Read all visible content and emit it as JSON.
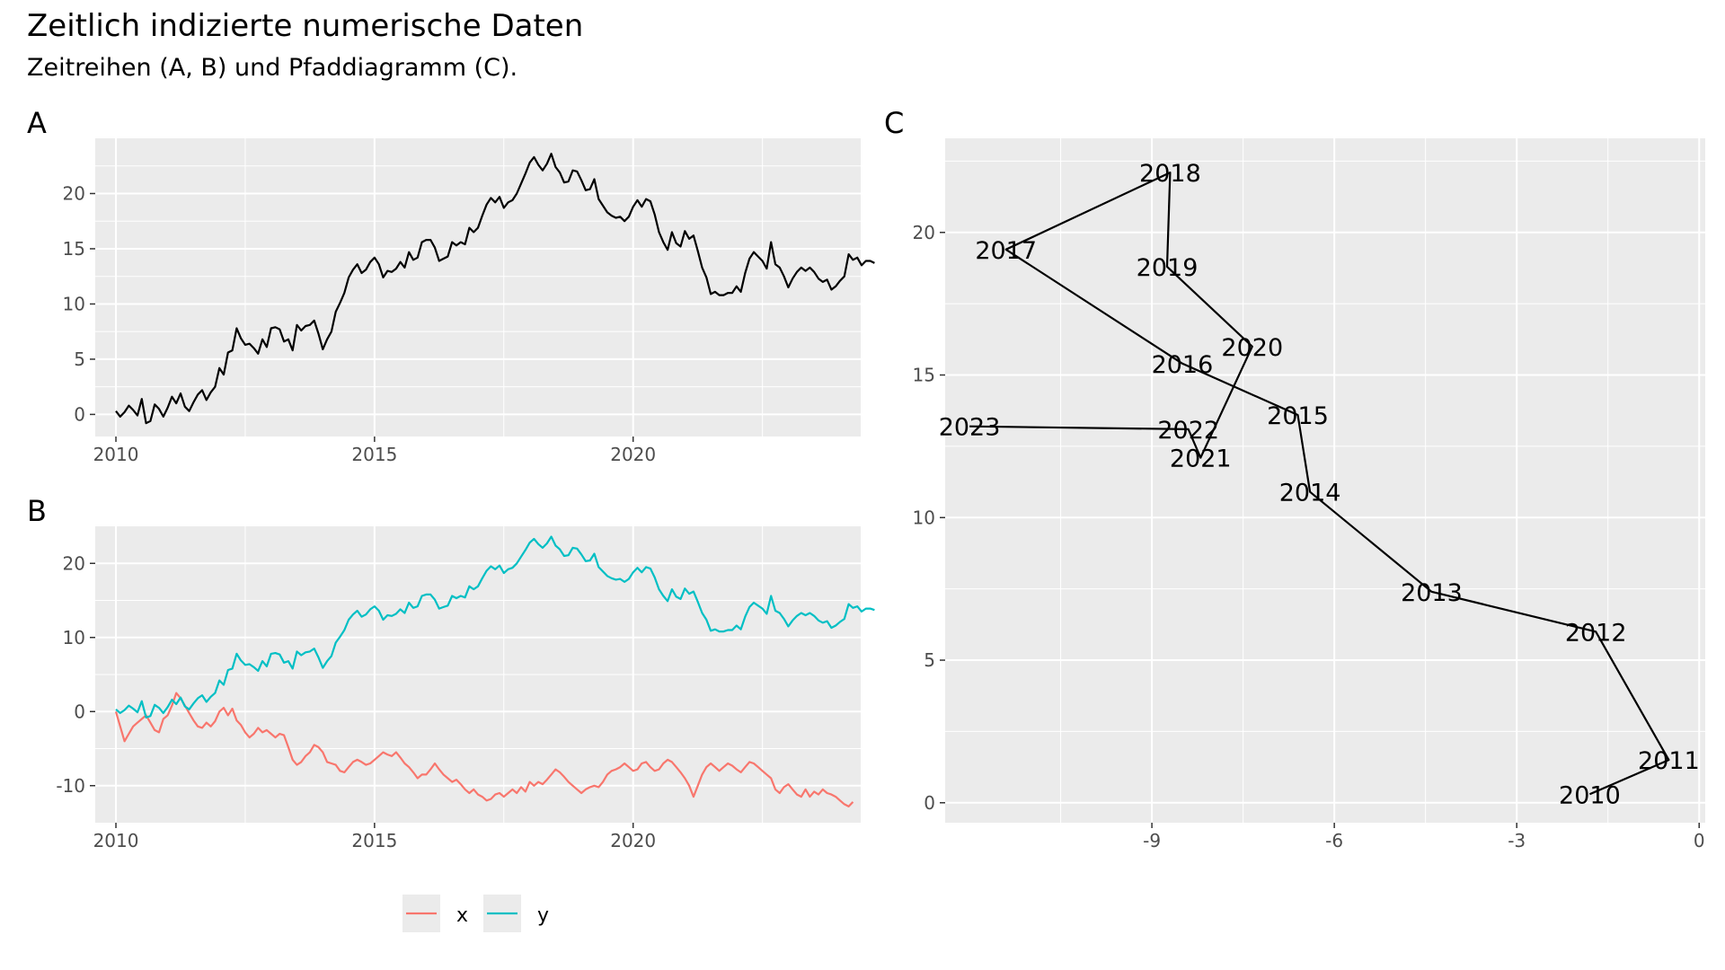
{
  "title": "Zeitlich indizierte numerische Daten",
  "subtitle": "Zeitreihen (A, B) und Pfaddiagramm (C).",
  "colors": {
    "x": "#F8766D",
    "y": "#00BFC4",
    "line": "#000000",
    "panel": "#EBEBEB",
    "grid": "#FFFFFF"
  },
  "legend": {
    "placement": "bottom",
    "items": [
      {
        "key": "x",
        "label": "x"
      },
      {
        "key": "y",
        "label": "y"
      }
    ]
  },
  "chart_data": [
    {
      "tag": "A",
      "type": "line",
      "xlim": [
        2009.6,
        2024.4
      ],
      "ylim": [
        -2,
        25
      ],
      "x_ticks": [
        2010,
        2015,
        2020
      ],
      "y_ticks": [
        0,
        5,
        10,
        15,
        20
      ],
      "grid": true,
      "series": [
        {
          "key": "y",
          "x_start": 2010.0,
          "x_step": 0.0833333,
          "values": [
            0.3,
            -0.2,
            0.2,
            0.8,
            0.4,
            -0.1,
            1.4,
            -0.8,
            -0.6,
            0.9,
            0.5,
            -0.2,
            0.6,
            1.6,
            1.0,
            1.9,
            0.7,
            0.3,
            1.1,
            1.8,
            2.2,
            1.3,
            2.0,
            2.5,
            4.2,
            3.6,
            5.6,
            5.8,
            7.8,
            6.9,
            6.3,
            6.4,
            6.0,
            5.5,
            6.8,
            6.1,
            7.8,
            7.9,
            7.7,
            6.6,
            6.8,
            5.8,
            8.1,
            7.6,
            8.0,
            8.1,
            8.5,
            7.3,
            5.9,
            6.8,
            7.5,
            9.3,
            10.1,
            11.0,
            12.4,
            13.1,
            13.6,
            12.8,
            13.1,
            13.8,
            14.2,
            13.6,
            12.4,
            13.0,
            12.9,
            13.2,
            13.8,
            13.3,
            14.7,
            14.0,
            14.2,
            15.6,
            15.8,
            15.8,
            15.1,
            13.9,
            14.1,
            14.3,
            15.6,
            15.3,
            15.6,
            15.4,
            16.9,
            16.5,
            16.9,
            18.0,
            19.0,
            19.6,
            19.2,
            19.7,
            18.7,
            19.2,
            19.4,
            20.0,
            20.9,
            21.8,
            22.8,
            23.3,
            22.6,
            22.1,
            22.7,
            23.6,
            22.4,
            21.9,
            21.0,
            21.1,
            22.1,
            22.0,
            21.2,
            20.3,
            20.4,
            21.3,
            19.5,
            18.9,
            18.3,
            18.0,
            17.8,
            17.9,
            17.5,
            17.9,
            18.8,
            19.4,
            18.8,
            19.5,
            19.3,
            18.1,
            16.5,
            15.6,
            14.9,
            16.5,
            15.5,
            15.2,
            16.6,
            15.9,
            16.2,
            14.8,
            13.3,
            12.4,
            10.9,
            11.1,
            10.8,
            10.8,
            11.0,
            11.0,
            11.6,
            11.1,
            12.8,
            14.1,
            14.7,
            14.3,
            13.9,
            13.2,
            15.6,
            13.6,
            13.3,
            12.5,
            11.5,
            12.3,
            12.9,
            13.3,
            13.0,
            13.3,
            12.9,
            12.3,
            12.0,
            12.2,
            11.3,
            11.6,
            12.1,
            12.5,
            14.5,
            14.0,
            14.2,
            13.5,
            13.9,
            13.9,
            13.7
          ]
        }
      ]
    },
    {
      "tag": "B",
      "type": "line",
      "xlim": [
        2009.6,
        2024.4
      ],
      "ylim": [
        -15,
        25
      ],
      "x_ticks": [
        2010,
        2015,
        2020
      ],
      "y_ticks": [
        -10,
        0,
        10,
        20
      ],
      "grid": true,
      "series": [
        {
          "key": "x",
          "name": "x",
          "x_start": 2010.0,
          "x_step": 0.0833333,
          "values": [
            0.0,
            -2.0,
            -4.0,
            -3.0,
            -2.0,
            -1.5,
            -1.0,
            -0.5,
            -1.5,
            -2.5,
            -2.8,
            -1.0,
            -0.5,
            0.8,
            2.5,
            1.8,
            0.8,
            -0.2,
            -1.2,
            -2.0,
            -2.2,
            -1.5,
            -2.0,
            -1.3,
            0.0,
            0.5,
            -0.5,
            0.4,
            -1.2,
            -1.8,
            -2.8,
            -3.5,
            -3.0,
            -2.2,
            -2.8,
            -2.5,
            -3.0,
            -3.5,
            -3.0,
            -3.2,
            -4.8,
            -6.5,
            -7.2,
            -6.8,
            -6.0,
            -5.5,
            -4.5,
            -4.8,
            -5.5,
            -6.8,
            -7.0,
            -7.2,
            -8.0,
            -8.2,
            -7.5,
            -6.8,
            -6.5,
            -6.8,
            -7.2,
            -7.0,
            -6.5,
            -6.0,
            -5.5,
            -5.8,
            -6.0,
            -5.5,
            -6.2,
            -7.0,
            -7.5,
            -8.2,
            -9.0,
            -8.5,
            -8.5,
            -7.8,
            -7.0,
            -7.8,
            -8.5,
            -9.0,
            -9.5,
            -9.2,
            -9.8,
            -10.5,
            -11.0,
            -10.5,
            -11.2,
            -11.5,
            -12.0,
            -11.8,
            -11.2,
            -11.0,
            -11.5,
            -11.0,
            -10.5,
            -11.0,
            -10.2,
            -10.8,
            -9.5,
            -10.0,
            -9.5,
            -9.8,
            -9.2,
            -8.5,
            -7.8,
            -8.2,
            -8.8,
            -9.5,
            -10.0,
            -10.5,
            -11.0,
            -10.5,
            -10.2,
            -10.0,
            -10.2,
            -9.5,
            -8.5,
            -8.0,
            -7.8,
            -7.5,
            -7.0,
            -7.5,
            -8.0,
            -7.8,
            -7.0,
            -6.8,
            -7.5,
            -8.0,
            -7.8,
            -7.0,
            -6.5,
            -6.8,
            -7.5,
            -8.2,
            -9.0,
            -10.0,
            -11.5,
            -10.0,
            -8.5,
            -7.5,
            -7.0,
            -7.5,
            -8.0,
            -7.5,
            -7.0,
            -7.3,
            -7.8,
            -8.2,
            -7.5,
            -6.8,
            -7.0,
            -7.5,
            -8.0,
            -8.5,
            -9.0,
            -10.5,
            -11.0,
            -10.2,
            -9.8,
            -10.5,
            -11.2,
            -11.5,
            -10.5,
            -11.5,
            -10.8,
            -11.2,
            -10.5,
            -11.0,
            -11.2,
            -11.5,
            -12.0,
            -12.5,
            -12.8,
            -12.2
          ]
        },
        {
          "key": "y",
          "name": "y",
          "x_start": 2010.0,
          "x_step": 0.0833333,
          "values": [
            0.3,
            -0.2,
            0.2,
            0.8,
            0.4,
            -0.1,
            1.4,
            -0.8,
            -0.6,
            0.9,
            0.5,
            -0.2,
            0.6,
            1.6,
            1.0,
            1.9,
            0.7,
            0.3,
            1.1,
            1.8,
            2.2,
            1.3,
            2.0,
            2.5,
            4.2,
            3.6,
            5.6,
            5.8,
            7.8,
            6.9,
            6.3,
            6.4,
            6.0,
            5.5,
            6.8,
            6.1,
            7.8,
            7.9,
            7.7,
            6.6,
            6.8,
            5.8,
            8.1,
            7.6,
            8.0,
            8.1,
            8.5,
            7.3,
            5.9,
            6.8,
            7.5,
            9.3,
            10.1,
            11.0,
            12.4,
            13.1,
            13.6,
            12.8,
            13.1,
            13.8,
            14.2,
            13.6,
            12.4,
            13.0,
            12.9,
            13.2,
            13.8,
            13.3,
            14.7,
            14.0,
            14.2,
            15.6,
            15.8,
            15.8,
            15.1,
            13.9,
            14.1,
            14.3,
            15.6,
            15.3,
            15.6,
            15.4,
            16.9,
            16.5,
            16.9,
            18.0,
            19.0,
            19.6,
            19.2,
            19.7,
            18.7,
            19.2,
            19.4,
            20.0,
            20.9,
            21.8,
            22.8,
            23.3,
            22.6,
            22.1,
            22.7,
            23.6,
            22.4,
            21.9,
            21.0,
            21.1,
            22.1,
            22.0,
            21.2,
            20.3,
            20.4,
            21.3,
            19.5,
            18.9,
            18.3,
            18.0,
            17.8,
            17.9,
            17.5,
            17.9,
            18.8,
            19.4,
            18.8,
            19.5,
            19.3,
            18.1,
            16.5,
            15.6,
            14.9,
            16.5,
            15.5,
            15.2,
            16.6,
            15.9,
            16.2,
            14.8,
            13.3,
            12.4,
            10.9,
            11.1,
            10.8,
            10.8,
            11.0,
            11.0,
            11.6,
            11.1,
            12.8,
            14.1,
            14.7,
            14.3,
            13.9,
            13.2,
            15.6,
            13.6,
            13.3,
            12.5,
            11.5,
            12.3,
            12.9,
            13.3,
            13.0,
            13.3,
            12.9,
            12.3,
            12.0,
            12.2,
            11.3,
            11.6,
            12.1,
            12.5,
            14.5,
            14.0,
            14.2,
            13.5,
            13.9,
            13.9,
            13.7
          ]
        }
      ]
    },
    {
      "tag": "C",
      "type": "path",
      "xlim": [
        -12.4,
        0.1
      ],
      "ylim": [
        -0.7,
        23.3
      ],
      "x_ticks": [
        -9,
        -6,
        -3,
        0
      ],
      "y_ticks": [
        0,
        5,
        10,
        15,
        20
      ],
      "grid": true,
      "points": [
        {
          "label": "2010",
          "x": -1.8,
          "y": 0.3
        },
        {
          "label": "2011",
          "x": -0.5,
          "y": 1.5
        },
        {
          "label": "2012",
          "x": -1.7,
          "y": 6.0
        },
        {
          "label": "2013",
          "x": -4.4,
          "y": 7.4
        },
        {
          "label": "2014",
          "x": -6.4,
          "y": 10.9
        },
        {
          "label": "2015",
          "x": -6.6,
          "y": 13.6
        },
        {
          "label": "2016",
          "x": -8.5,
          "y": 15.4
        },
        {
          "label": "2017",
          "x": -11.4,
          "y": 19.4
        },
        {
          "label": "2018",
          "x": -8.7,
          "y": 22.1
        },
        {
          "label": "2019",
          "x": -8.75,
          "y": 18.8
        },
        {
          "label": "2020",
          "x": -7.35,
          "y": 16.0
        },
        {
          "label": "2021",
          "x": -8.2,
          "y": 12.1
        },
        {
          "label": "2022",
          "x": -8.4,
          "y": 13.1
        },
        {
          "label": "2023",
          "x": -12.0,
          "y": 13.2
        }
      ]
    }
  ]
}
